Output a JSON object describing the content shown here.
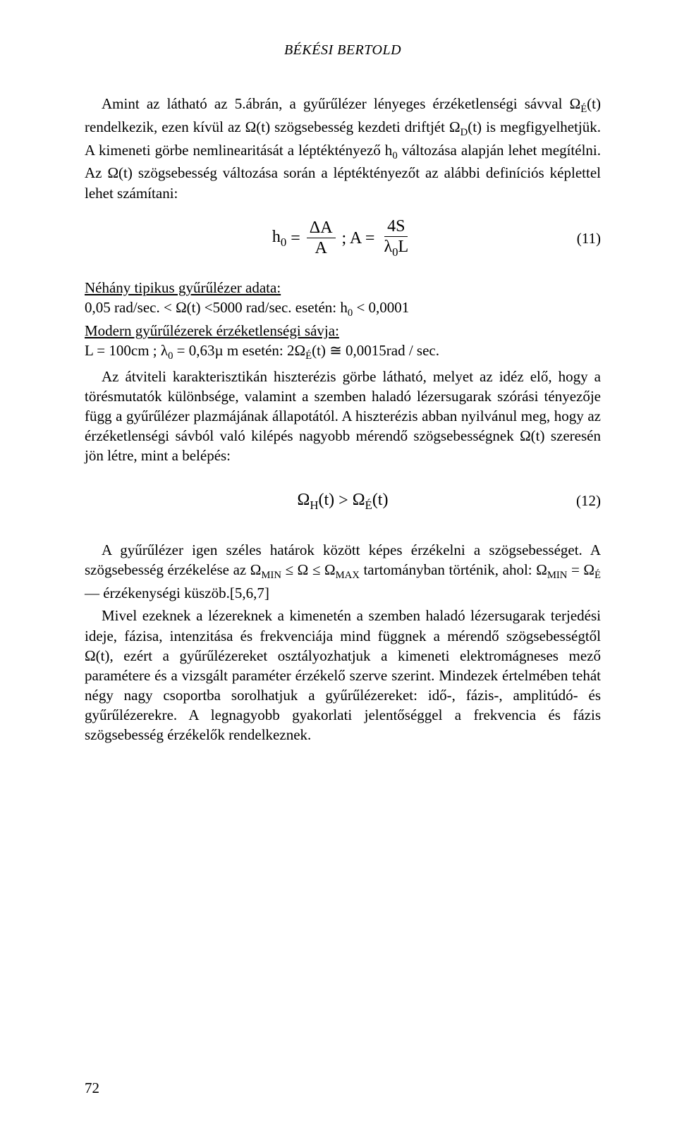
{
  "running_head": "BÉKÉSI BERTOLD",
  "p1": {
    "s1a": "Amint az látható az 5.ábrán, a gyűrűlézer lényeges érzéketlenségi sávval ",
    "sym1": "Ω",
    "sub1": "É",
    "paren1": "(t)",
    "s1b": " rendelkezik, ezen kívül az ",
    "sym2": "Ω(t)",
    "s1c": " szögsebesség kezdeti driftjét ",
    "sym3": "Ω",
    "sub3": "D",
    "paren3": "(t)",
    "s1d": " is megfigyelhetjük. A kimeneti görbe nemlinearitását a léptéktényező h",
    "sub4": "0",
    "s1e": " változása alapján lehet megítélni. Az ",
    "sym4": "Ω(t)",
    "s1f": " szögsebesség változása során a léptéktényezőt az alábbi definíciós képlettel lehet számítani:"
  },
  "eq11": {
    "lhs": "h",
    "lhs_sub": "0",
    "eq": " = ",
    "frac1_num": "ΔA",
    "frac1_den": "A",
    "sep": " ;  A = ",
    "frac2_num": "4S",
    "frac2_den_a": "λ",
    "frac2_den_sub": "0",
    "frac2_den_b": "L",
    "num": "(11)"
  },
  "p2": {
    "u1": "Néhány tipikus gyűrűlézer adata:",
    "line2a": "0,05 rad/sec. < ",
    "sym": "Ω(t)",
    "line2b": " <5000 rad/sec. esetén: h",
    "sub": "0",
    "line2c": " < 0,0001",
    "u2": "Modern gyűrűlézerek érzéketlenségi sávja:",
    "line3a": "L = 100cm ; ",
    "lambda": "λ",
    "lambda_sub": "0",
    "line3b": " = 0,63",
    "mu": "µ m",
    "line3c": " esetén: 2Ω",
    "esub": "É",
    "paren": "(t)",
    "approx": " ≅ 0,0015rad / sec."
  },
  "p3": {
    "s1": "Az átviteli karakterisztikán hiszterézis görbe látható, melyet az idéz elő, hogy a törésmutatók különbsége, valamint a szemben haladó lézersugarak szórási tényezője függ a gyűrűlézer plazmájának állapotától. A hiszterézis abban nyilvánul meg, hogy az érzéketlenségi sávból való kilépés nagyobb mérendő szögsebességnek ",
    "sym": "Ω(t)",
    "s2": " szeresén jön létre, mint a belépés:"
  },
  "eq12": {
    "lhs_a": "Ω",
    "lhs_sub": "H",
    "lhs_b": "(t)",
    "gt": " > ",
    "rhs_a": "Ω",
    "rhs_sub": "É",
    "rhs_b": "(t)",
    "num": "(12)"
  },
  "p4": {
    "s1": "A gyűrűlézer igen széles határok között képes érzékelni a szögsebességet. A szögsebesség érzékelése az ",
    "omin_a": "Ω",
    "omin_sub": "MIN",
    "le1": " ≤ Ω ≤ ",
    "omax_a": "Ω",
    "omax_sub": "MAX",
    "s2": " tartományban történik, ahol: ",
    "omin2_a": "Ω",
    "omin2_sub": "MIN",
    "eq": " = ",
    "oe_a": "Ω",
    "oe_sub": "É",
    "s3": " — érzékenységi küszöb.[5,6,7]"
  },
  "p5": {
    "s1": "Mivel ezeknek a lézereknek a kimenetén a szemben haladó lézersugarak terjedési ideje, fázisa, intenzitása és frekvenciája mind függnek a mérendő szögsebességtől ",
    "sym": "Ω(t)",
    "s2": ", ezért a gyűrűlézereket osztályozhatjuk a kimeneti elektromágneses mező paramétere és a vizsgált paraméter érzékelő szerve szerint. Mindezek értelmében tehát négy nagy csoportba sorolhatjuk a gyűrűlézereket: idő-, fázis-, amplitúdó- és gyűrűlézerekre. A legnagyobb gyakorlati jelentőséggel a frekvencia és fázis szögsebesség érzékelők rendelkeznek."
  },
  "page_num": "72"
}
